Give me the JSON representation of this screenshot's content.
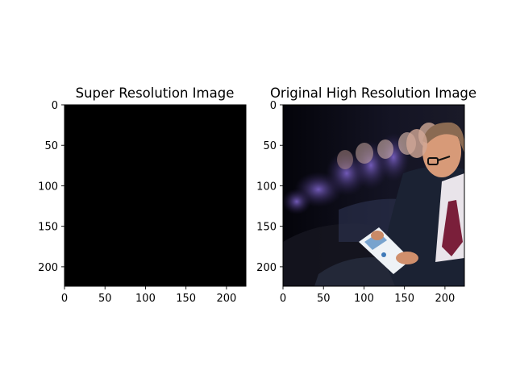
{
  "chart_data": [
    {
      "type": "image",
      "title": "Super Resolution Image",
      "content": "solid black",
      "xlim": [
        0,
        224
      ],
      "ylim": [
        224,
        0
      ],
      "xticks": [
        0,
        50,
        100,
        150,
        200
      ],
      "yticks": [
        0,
        50,
        100,
        150,
        200
      ],
      "xtick_labels": [
        "0",
        "50",
        "100",
        "150",
        "200"
      ],
      "ytick_labels": [
        "0",
        "50",
        "100",
        "150",
        "200"
      ],
      "colors": {
        "image_fill": "#000000"
      }
    },
    {
      "type": "image",
      "title": "Original High Resolution Image",
      "content": "photograph of conference audience, man in glasses and suit reading a booklet in foreground",
      "xlim": [
        0,
        224
      ],
      "ylim": [
        224,
        0
      ],
      "xticks": [
        0,
        50,
        100,
        150,
        200
      ],
      "yticks": [
        0,
        50,
        100,
        150,
        200
      ],
      "xtick_labels": [
        "0",
        "50",
        "100",
        "150",
        "200"
      ],
      "ytick_labels": [
        "0",
        "50",
        "100",
        "150",
        "200"
      ],
      "colors": {
        "background": "#0a0a12",
        "bokeh_purple": "#6a4fb0",
        "suit": "#1b2233",
        "skin": "#d79a78",
        "tie": "#7a1f3a"
      }
    }
  ]
}
